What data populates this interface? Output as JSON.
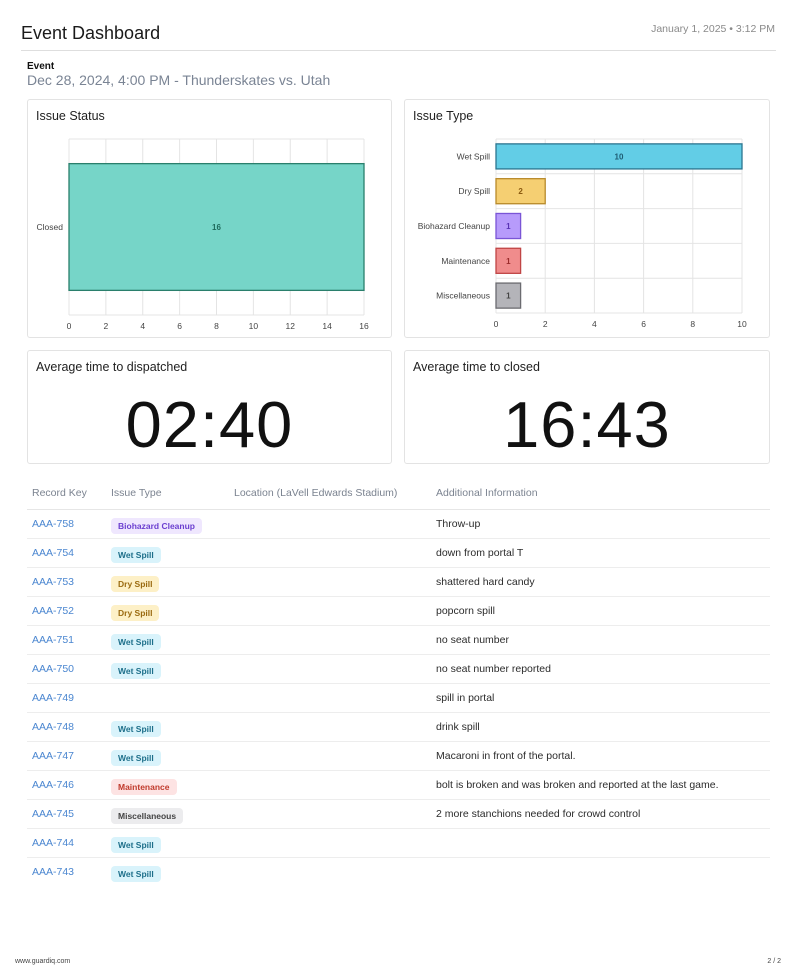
{
  "header": {
    "title": "Event Dashboard",
    "date": "January 1, 2025 • 3:12 PM"
  },
  "event": {
    "label": "Event",
    "value": "Dec 28, 2024, 4:00 PM - Thunderskates vs. Utah"
  },
  "cards": {
    "issue_status_title": "Issue Status",
    "issue_type_title": "Issue Type",
    "avg_dispatched_title": "Average time to dispatched",
    "avg_dispatched_value": "02:40",
    "avg_closed_title": "Average time to closed",
    "avg_closed_value": "16:43"
  },
  "chart_data": [
    {
      "type": "bar",
      "orientation": "horizontal",
      "title": "Issue Status",
      "categories": [
        "Closed"
      ],
      "values": [
        16
      ],
      "xlim": [
        0,
        16
      ],
      "xticks": [
        0,
        2,
        4,
        6,
        8,
        10,
        12,
        14,
        16
      ],
      "colors": [
        "#76d5c8"
      ],
      "edge_colors": [
        "#2a7f6c"
      ],
      "label_colors": [
        "#1f6b5d"
      ],
      "grid": true
    },
    {
      "type": "bar",
      "orientation": "horizontal",
      "title": "Issue Type",
      "categories": [
        "Wet Spill",
        "Dry Spill",
        "Biohazard Cleanup",
        "Maintenance",
        "Miscellaneous"
      ],
      "values": [
        10,
        2,
        1,
        1,
        1
      ],
      "xlim": [
        0,
        10
      ],
      "xticks": [
        0,
        2,
        4,
        6,
        8,
        10
      ],
      "colors": [
        "#62cde6",
        "#f5cf72",
        "#b79bfb",
        "#f08c8c",
        "#b4b4b9"
      ],
      "edge_colors": [
        "#2b7590",
        "#b88a2a",
        "#7a55d6",
        "#c04545",
        "#6b6b70"
      ],
      "label_colors": [
        "#1d5c73",
        "#8a5a10",
        "#5a33b5",
        "#9b2c2c",
        "#444444"
      ],
      "grid": true
    }
  ],
  "table": {
    "headers": [
      "Record Key",
      "Issue Type",
      "Location (LaVell Edwards Stadium)",
      "Additional Information"
    ],
    "rows": [
      {
        "key": "AAA-758",
        "type": "Biohazard Cleanup",
        "info": "Throw-up"
      },
      {
        "key": "AAA-754",
        "type": "Wet Spill",
        "info": "down from portal T"
      },
      {
        "key": "AAA-753",
        "type": "Dry Spill",
        "info": "shattered hard candy"
      },
      {
        "key": "AAA-752",
        "type": "Dry Spill",
        "info": "popcorn spill"
      },
      {
        "key": "AAA-751",
        "type": "Wet Spill",
        "info": "no seat number"
      },
      {
        "key": "AAA-750",
        "type": "Wet Spill",
        "info": "no seat number reported"
      },
      {
        "key": "AAA-749",
        "type": "",
        "info": "spill in portal"
      },
      {
        "key": "AAA-748",
        "type": "Wet Spill",
        "info": "drink spill"
      },
      {
        "key": "AAA-747",
        "type": "Wet Spill",
        "info": "Macaroni in front of the portal."
      },
      {
        "key": "AAA-746",
        "type": "Maintenance",
        "info": "bolt is broken and was broken and reported at the last game."
      },
      {
        "key": "AAA-745",
        "type": "Miscellaneous",
        "info": "2 more stanchions needed for crowd control"
      },
      {
        "key": "AAA-744",
        "type": "Wet Spill",
        "info": ""
      },
      {
        "key": "AAA-743",
        "type": "Wet Spill",
        "info": ""
      }
    ]
  },
  "badge_styles": {
    "Wet Spill": {
      "bg": "#d9f3fb",
      "fg": "#1d6f8a"
    },
    "Dry Spill": {
      "bg": "#fdf0c7",
      "fg": "#9a6a10"
    },
    "Biohazard Cleanup": {
      "bg": "#efe7fe",
      "fg": "#6b3fd0"
    },
    "Maintenance": {
      "bg": "#fde3e3",
      "fg": "#c0392b"
    },
    "Miscellaneous": {
      "bg": "#ececee",
      "fg": "#444444"
    }
  },
  "footer": {
    "url": "www.guardiq.com",
    "page": "2 / 2"
  }
}
